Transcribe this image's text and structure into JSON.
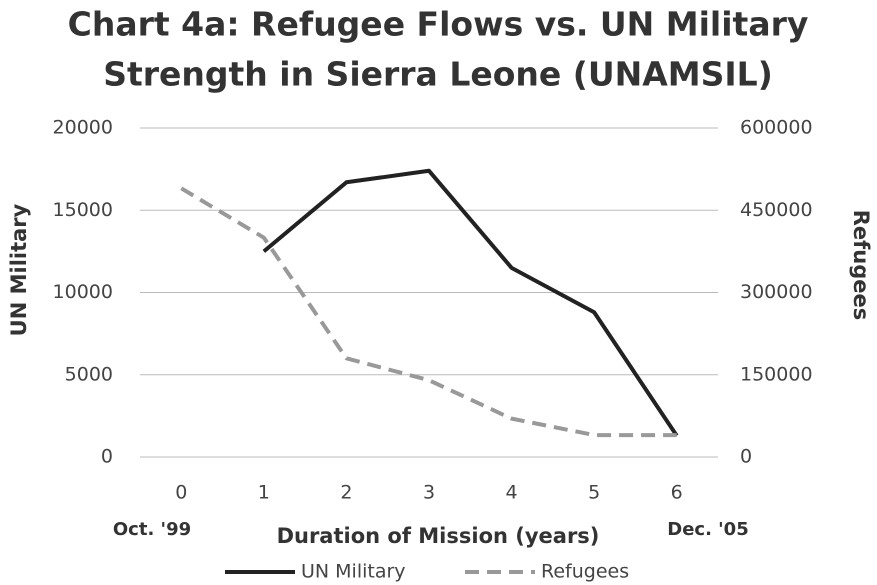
{
  "chart_data": {
    "type": "line",
    "title": [
      "Chart 4a: Refugee Flows vs. UN Military",
      "Strength in Sierra Leone (UNAMSIL)"
    ],
    "x_label": "Duration of Mission (years)",
    "y_label": "UN Military",
    "y2_label": "Refugees",
    "annotations": [
      "Oct. '99",
      "Dec. '05"
    ],
    "x": [
      0,
      1,
      2,
      3,
      4,
      5,
      6
    ],
    "xlim": [
      -0.5,
      6.5
    ],
    "xticks": [
      0,
      1,
      2,
      3,
      4,
      5,
      6
    ],
    "ylim": [
      0,
      20000
    ],
    "yticks": [
      0,
      5000,
      10000,
      15000,
      20000
    ],
    "y2lim": [
      0,
      600000
    ],
    "y2ticks": [
      0,
      150000,
      300000,
      450000,
      600000
    ],
    "grid": true,
    "legend": "bottom",
    "series": [
      {
        "name": "UN Military",
        "color": "#222222",
        "dash": "solid",
        "values": [
          null,
          12500,
          16700,
          17400,
          11500,
          8800,
          1300
        ]
      },
      {
        "name": "Refugees",
        "color": "#999999",
        "dash": "dashed",
        "axis": "y2",
        "values": [
          490000,
          400000,
          180000,
          140000,
          70000,
          40000,
          40000
        ]
      }
    ]
  }
}
